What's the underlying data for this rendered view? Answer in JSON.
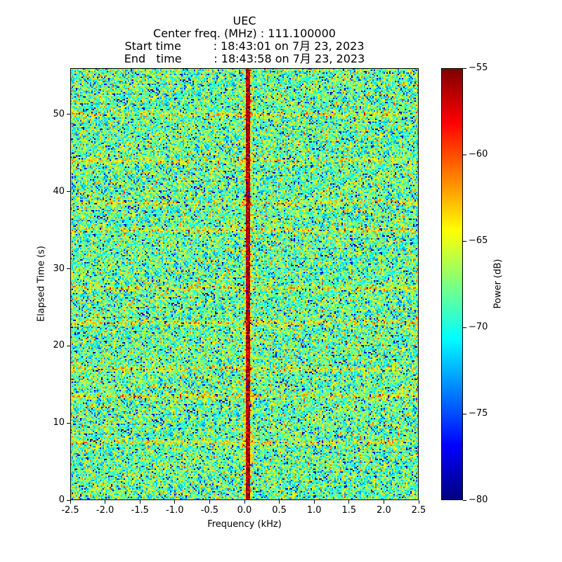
{
  "chart_data": {
    "type": "heatmap",
    "title_lines": [
      "UEC",
      "Center freq. (MHz) : 111.100000",
      "Start time         : 18:43:01 on 7月 23, 2023",
      "End   time         : 18:43:58 on 7月 23, 2023"
    ],
    "xlabel": "Frequency (kHz)",
    "ylabel": "Elapsed Time (s)",
    "xlim": [
      -2.5,
      2.5
    ],
    "ylim": [
      0,
      56
    ],
    "x_ticks": [
      -2.5,
      -2.0,
      -1.5,
      -1.0,
      -0.5,
      0.0,
      0.5,
      1.0,
      1.5,
      2.0,
      2.5
    ],
    "x_tick_labels": [
      "-2.5",
      "-2.0",
      "-1.5",
      "-1.0",
      "-0.5",
      "0.0",
      "0.5",
      "1.0",
      "1.5",
      "2.0",
      "2.5"
    ],
    "y_ticks": [
      0,
      10,
      20,
      30,
      40,
      50
    ],
    "y_tick_labels": [
      "0",
      "10",
      "20",
      "30",
      "40",
      "50"
    ],
    "colorbar": {
      "label": "Power (dB)",
      "range": [
        -80,
        -55
      ],
      "ticks": [
        -80,
        -75,
        -70,
        -65,
        -60,
        -55
      ],
      "tick_labels": [
        "−80",
        "−75",
        "−70",
        "−65",
        "−60",
        "−55"
      ],
      "colormap": "jet"
    },
    "noise_floor_db": -68,
    "signal_line": {
      "freq_khz": 0.05,
      "power_db": -56
    },
    "bright_time_bands_s": [
      7.5,
      13.5,
      17,
      23,
      27.5,
      35,
      38.5,
      44,
      50
    ]
  }
}
